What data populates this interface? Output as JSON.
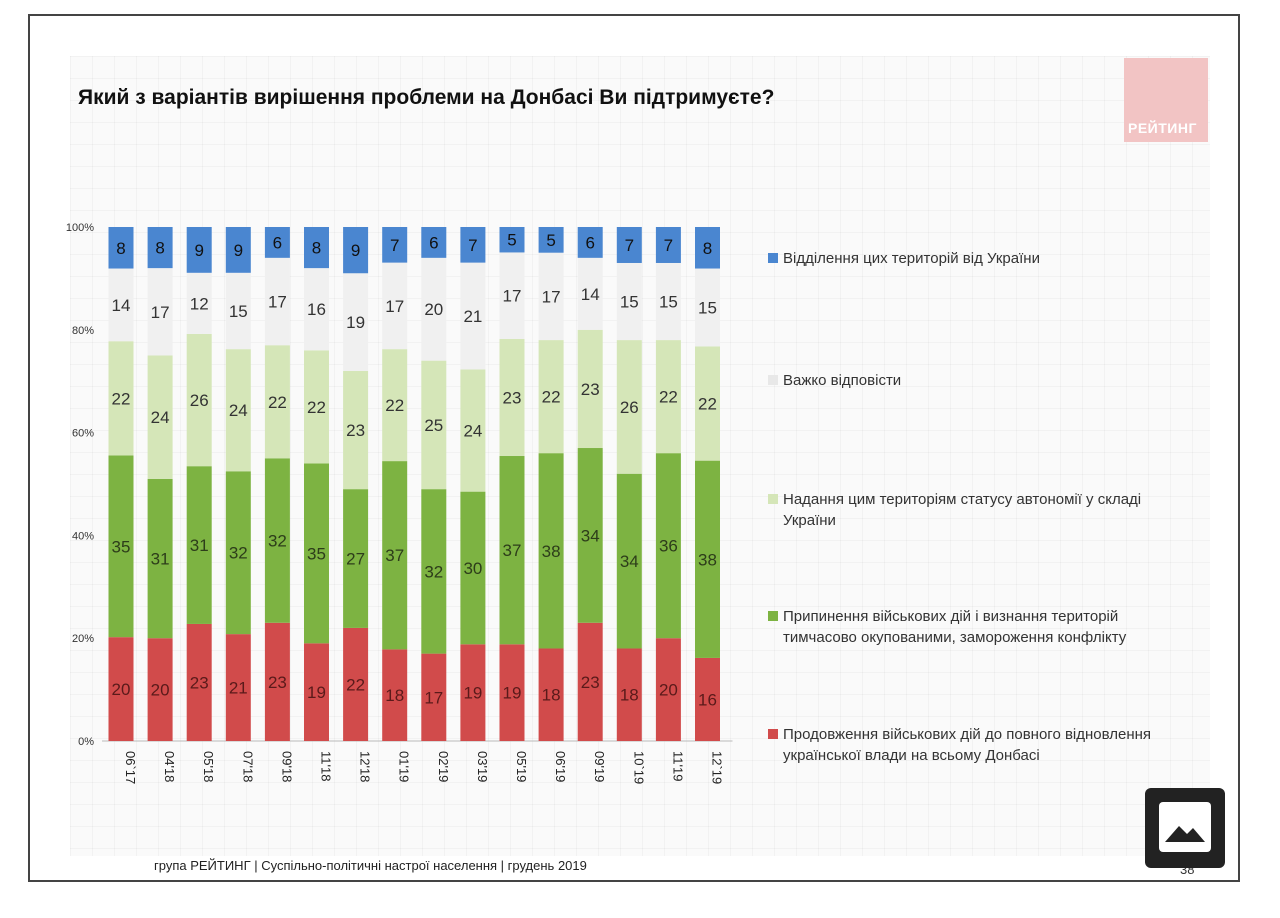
{
  "title": "Який з варіантів вирішення проблеми на Донбасі Ви підтримуєте?",
  "logo_text": "РЕЙТИНГ",
  "footer": "група РЕЙТИНГ | Суспільно-політичні настрої населення  | грудень 2019",
  "page_number": "38",
  "colors": {
    "separation": "#4a86d0",
    "hard_to_say": "#f0f0f0",
    "autonomy": "#d5e6b8",
    "ceasefire": "#7db342",
    "continuation": "#d14b4b"
  },
  "chart_data": {
    "type": "bar",
    "stacked": true,
    "percent": true,
    "categories": [
      "06`17",
      "04'18",
      "05'18",
      "07'18",
      "09'18",
      "11'18",
      "12'18",
      "01'19",
      "02'19",
      "03'19",
      "05'19",
      "06'19",
      "09'19",
      "10`19",
      "11'19",
      "12`19"
    ],
    "y_ticks": [
      "0%",
      "20%",
      "40%",
      "60%",
      "80%",
      "100%"
    ],
    "ylim": [
      0,
      100
    ],
    "grid": false,
    "legend_position": "right",
    "series": [
      {
        "key": "continuation",
        "name": "Продовження військових дій до повного відновлення української влади на всьому Донбасі",
        "values": [
          20,
          20,
          23,
          21,
          23,
          19,
          22,
          18,
          17,
          19,
          19,
          18,
          23,
          18,
          20,
          16
        ]
      },
      {
        "key": "ceasefire",
        "name": "Припинення військових дій і визнання територій тимчасово окупованими, замороження конфлікту",
        "values": [
          35,
          31,
          31,
          32,
          32,
          35,
          27,
          37,
          32,
          30,
          37,
          38,
          34,
          34,
          36,
          38
        ]
      },
      {
        "key": "autonomy",
        "name": "Надання цим територіям статусу автономії у складі України",
        "values": [
          22,
          24,
          26,
          24,
          22,
          22,
          23,
          22,
          25,
          24,
          23,
          22,
          23,
          26,
          22,
          22
        ]
      },
      {
        "key": "hard_to_say",
        "name": "Важко відповісти",
        "values": [
          14,
          17,
          12,
          15,
          17,
          16,
          19,
          17,
          20,
          21,
          17,
          17,
          14,
          15,
          15,
          15
        ]
      },
      {
        "key": "separation",
        "name": "Відділення цих територій від України",
        "values": [
          8,
          8,
          9,
          9,
          6,
          8,
          9,
          7,
          6,
          7,
          5,
          5,
          6,
          7,
          7,
          8
        ]
      }
    ]
  }
}
